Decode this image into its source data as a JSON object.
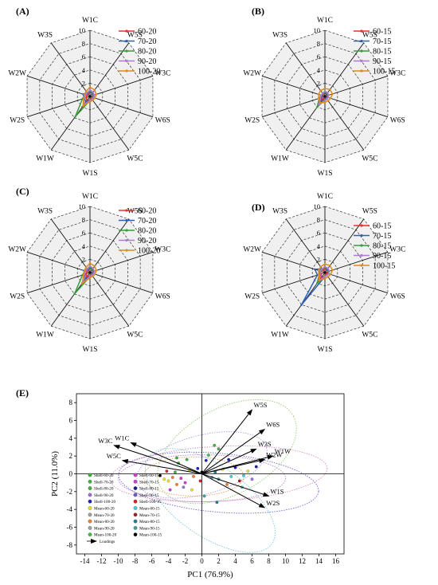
{
  "chart_data": [
    {
      "panel": "(A)",
      "type": "radar",
      "axes": [
        "W1C",
        "W5S",
        "W3C",
        "W6S",
        "W5C",
        "W1S",
        "W1W",
        "W2S",
        "W2W",
        "W3S"
      ],
      "rlim": [
        0,
        10
      ],
      "r_ticks": [
        "2",
        "4",
        "6",
        "8",
        "10"
      ],
      "legend_position": "top-right",
      "series": [
        {
          "name": "60-20",
          "color": "#e8312a",
          "values": [
            0.6,
            0.6,
            0.5,
            0.5,
            0.4,
            0.5,
            0.8,
            0.6,
            0.5,
            0.5
          ]
        },
        {
          "name": "70-20",
          "color": "#2d5fb5",
          "values": [
            0.7,
            0.6,
            0.6,
            0.5,
            0.5,
            0.6,
            1.0,
            0.9,
            1.1,
            0.6
          ]
        },
        {
          "name": "80-20",
          "color": "#3a9a3c",
          "values": [
            0.8,
            0.7,
            0.6,
            0.6,
            0.5,
            0.6,
            3.8,
            1.2,
            0.8,
            0.7
          ]
        },
        {
          "name": "90-20",
          "color": "#b07ad0",
          "values": [
            1.0,
            0.8,
            0.7,
            0.6,
            0.5,
            0.6,
            1.5,
            0.9,
            0.7,
            0.7
          ]
        },
        {
          "name": "100-20",
          "color": "#d98d15",
          "values": [
            1.4,
            1.2,
            1.0,
            0.8,
            0.7,
            0.8,
            1.8,
            1.0,
            0.9,
            1.0
          ]
        }
      ]
    },
    {
      "panel": "(B)",
      "type": "radar",
      "axes": [
        "W1C",
        "W5S",
        "W3C",
        "W6S",
        "W5C",
        "W1S",
        "W1W",
        "W2S",
        "W2W",
        "W3S"
      ],
      "rlim": [
        0,
        10
      ],
      "r_ticks": [
        "2",
        "4",
        "6",
        "8",
        "10"
      ],
      "legend_position": "top-right",
      "series": [
        {
          "name": "60-15",
          "color": "#e8312a",
          "values": [
            0.5,
            0.5,
            0.4,
            0.4,
            0.4,
            0.4,
            0.6,
            0.5,
            0.4,
            0.4
          ]
        },
        {
          "name": "70-15",
          "color": "#2d5fb5",
          "values": [
            0.6,
            0.5,
            0.5,
            0.4,
            0.4,
            0.5,
            0.9,
            0.6,
            0.5,
            0.5
          ]
        },
        {
          "name": "80-15",
          "color": "#3a9a3c",
          "values": [
            0.7,
            0.6,
            0.5,
            0.5,
            0.5,
            0.5,
            2.0,
            0.9,
            0.6,
            0.5
          ]
        },
        {
          "name": "90-15",
          "color": "#b07ad0",
          "values": [
            0.8,
            0.7,
            0.6,
            0.5,
            0.5,
            0.6,
            1.5,
            0.7,
            0.6,
            0.6
          ]
        },
        {
          "name": "100-15",
          "color": "#d98d15",
          "values": [
            1.2,
            1.3,
            1.2,
            0.9,
            0.8,
            0.9,
            1.2,
            1.0,
            1.0,
            1.1
          ]
        }
      ]
    },
    {
      "panel": "(C)",
      "type": "radar",
      "axes": [
        "W1C",
        "W5S",
        "W3C",
        "W6S",
        "W5C",
        "W1S",
        "W1W",
        "W2S",
        "W2W",
        "W3S"
      ],
      "rlim": [
        0,
        10
      ],
      "r_ticks": [
        "2",
        "4",
        "6",
        "8",
        "10"
      ],
      "legend_position": "top-right",
      "series": [
        {
          "name": "60-20",
          "color": "#e8312a",
          "values": [
            0.6,
            0.6,
            0.5,
            0.5,
            0.4,
            0.5,
            0.8,
            0.6,
            0.5,
            0.5
          ]
        },
        {
          "name": "70-20",
          "color": "#2d5fb5",
          "values": [
            0.7,
            0.6,
            0.6,
            0.5,
            0.5,
            0.6,
            1.2,
            0.8,
            1.0,
            0.6
          ]
        },
        {
          "name": "80-20",
          "color": "#3a9a3c",
          "values": [
            0.8,
            0.7,
            0.6,
            0.6,
            0.5,
            0.6,
            4.0,
            1.2,
            0.8,
            0.7
          ]
        },
        {
          "name": "90-20",
          "color": "#b07ad0",
          "values": [
            1.0,
            0.8,
            0.7,
            0.6,
            0.5,
            0.6,
            1.8,
            0.9,
            0.7,
            0.7
          ]
        },
        {
          "name": "100-20",
          "color": "#d98d15",
          "values": [
            1.4,
            1.2,
            1.0,
            0.8,
            0.7,
            0.8,
            2.0,
            1.0,
            0.9,
            1.0
          ]
        }
      ]
    },
    {
      "panel": "(D)",
      "type": "radar",
      "axes": [
        "W1C",
        "W5S",
        "W3C",
        "W6S",
        "W5C",
        "W1S",
        "W1W",
        "W2S",
        "W2W",
        "W3S"
      ],
      "rlim": [
        0,
        10
      ],
      "r_ticks": [
        "2",
        "4",
        "6",
        "8",
        "10"
      ],
      "legend_position": "top-right",
      "series": [
        {
          "name": "60-15",
          "color": "#e8312a",
          "values": [
            0.6,
            0.5,
            0.5,
            0.4,
            0.4,
            0.5,
            1.0,
            0.6,
            0.7,
            0.5
          ]
        },
        {
          "name": "70-15",
          "color": "#2d5fb5",
          "values": [
            0.8,
            0.6,
            0.6,
            0.5,
            0.5,
            0.6,
            6.1,
            1.2,
            1.6,
            0.7
          ]
        },
        {
          "name": "80-15",
          "color": "#3a9a3c",
          "values": [
            0.8,
            0.7,
            0.6,
            0.6,
            0.5,
            0.6,
            2.0,
            0.9,
            0.8,
            0.7
          ]
        },
        {
          "name": "90-15",
          "color": "#b07ad0",
          "values": [
            0.9,
            0.8,
            0.7,
            0.6,
            0.5,
            0.6,
            1.4,
            0.8,
            0.7,
            0.7
          ]
        },
        {
          "name": "100-15",
          "color": "#d98d15",
          "values": [
            1.3,
            1.3,
            1.2,
            0.9,
            0.8,
            0.9,
            1.5,
            1.0,
            1.0,
            1.1
          ]
        }
      ]
    },
    {
      "panel": "(E)",
      "type": "scatter",
      "xlabel": "PC1 (76.9%)",
      "ylabel": "PC2 (11.0%)",
      "xlim": [
        -15,
        17
      ],
      "ylim": [
        -9,
        9
      ],
      "xticks": [
        -14,
        -12,
        -10,
        -8,
        -6,
        -4,
        -2,
        0,
        2,
        4,
        6,
        8,
        10,
        12,
        14,
        16
      ],
      "yticks": [
        -8,
        -6,
        -4,
        -2,
        0,
        2,
        4,
        6,
        8
      ],
      "loadings": [
        {
          "name": "W5S",
          "x": 6.0,
          "y": 7.2
        },
        {
          "name": "W6S",
          "x": 7.5,
          "y": 5.0
        },
        {
          "name": "W3S",
          "x": 6.5,
          "y": 2.8
        },
        {
          "name": "W1W",
          "x": 8.5,
          "y": 2.0
        },
        {
          "name": "W2W",
          "x": 7.5,
          "y": 1.6
        },
        {
          "name": "W1S",
          "x": 8.0,
          "y": -2.5
        },
        {
          "name": "W2S",
          "x": 7.5,
          "y": -3.8
        },
        {
          "name": "W1C",
          "x": -8.5,
          "y": 3.5
        },
        {
          "name": "W3C",
          "x": -10.5,
          "y": 3.2
        },
        {
          "name": "W5C",
          "x": -9.5,
          "y": 1.5
        }
      ],
      "legend": [
        {
          "name": "Shell-60-20",
          "color": "#44b044"
        },
        {
          "name": "Shell-70-20",
          "color": "#44b044"
        },
        {
          "name": "Shell-80-20",
          "color": "#44b044"
        },
        {
          "name": "Shell-90-20",
          "color": "#a070d0"
        },
        {
          "name": "Shell-100-20",
          "color": "#2020c0"
        },
        {
          "name": "Mean-60-20",
          "color": "#e8e030"
        },
        {
          "name": "Mean-70-20",
          "color": "#a0a0a0"
        },
        {
          "name": "Mean-80-20",
          "color": "#f08030"
        },
        {
          "name": "Mean-90-20",
          "color": "#a0a0a0"
        },
        {
          "name": "Mean-100-20",
          "color": "#44c044"
        },
        {
          "name": "Shell-60-15",
          "color": "#d040d0"
        },
        {
          "name": "Shell-70-15",
          "color": "#d040d0"
        },
        {
          "name": "Shell-80-15",
          "color": "#202080"
        },
        {
          "name": "Shell-90-15",
          "color": "#6060c0"
        },
        {
          "name": "Shell-100-15",
          "color": "#e02020"
        },
        {
          "name": "Mean-60-15",
          "color": "#40d0e0"
        },
        {
          "name": "Mean-70-15",
          "color": "#a02020"
        },
        {
          "name": "Mean-80-15",
          "color": "#208090"
        },
        {
          "name": "Mean-90-15",
          "color": "#40a0a0"
        },
        {
          "name": "Mean-100-15",
          "color": "#000000"
        }
      ],
      "legend_loadings_label": "Loadings",
      "points": [
        {
          "x": -4.5,
          "y": -0.6,
          "color": "#e8e030"
        },
        {
          "x": -4.0,
          "y": -0.8,
          "color": "#e8e030"
        },
        {
          "x": -3.5,
          "y": -0.4,
          "color": "#f08030"
        },
        {
          "x": -3.0,
          "y": -1.2,
          "color": "#f08030"
        },
        {
          "x": -2.5,
          "y": -0.5,
          "color": "#d040d0"
        },
        {
          "x": -2.0,
          "y": -1.0,
          "color": "#d040d0"
        },
        {
          "x": -5.0,
          "y": -0.2,
          "color": "#000000"
        },
        {
          "x": -4.2,
          "y": 0.3,
          "color": "#e02020"
        },
        {
          "x": -3.2,
          "y": 0.2,
          "color": "#44b044"
        },
        {
          "x": -2.8,
          "y": 1.2,
          "color": "#44b044"
        },
        {
          "x": -1.8,
          "y": 1.6,
          "color": "#44b044"
        },
        {
          "x": -2.2,
          "y": -1.5,
          "color": "#a070d0"
        },
        {
          "x": -1.5,
          "y": 0.4,
          "color": "#e8e030"
        },
        {
          "x": -1.0,
          "y": -0.3,
          "color": "#f08030"
        },
        {
          "x": -0.5,
          "y": 0.6,
          "color": "#2020c0"
        },
        {
          "x": 0.5,
          "y": 1.5,
          "color": "#2020c0"
        },
        {
          "x": 0.8,
          "y": 2.1,
          "color": "#44c044"
        },
        {
          "x": 1.2,
          "y": -0.4,
          "color": "#40d0e0"
        },
        {
          "x": 1.6,
          "y": 0.2,
          "color": "#208090"
        },
        {
          "x": 2.0,
          "y": -0.6,
          "color": "#40a0a0"
        },
        {
          "x": 2.5,
          "y": 0.5,
          "color": "#e8e030"
        },
        {
          "x": 3.0,
          "y": -1.2,
          "color": "#f08030"
        },
        {
          "x": 3.5,
          "y": -0.3,
          "color": "#40d0e0"
        },
        {
          "x": 4.0,
          "y": 0.7,
          "color": "#2020c0"
        },
        {
          "x": 4.5,
          "y": -0.8,
          "color": "#a02020"
        },
        {
          "x": 5.0,
          "y": -0.2,
          "color": "#40d0e0"
        },
        {
          "x": 5.5,
          "y": 0.3,
          "color": "#e8e030"
        },
        {
          "x": 6.0,
          "y": -0.6,
          "color": "#a070d0"
        },
        {
          "x": 6.5,
          "y": 0.8,
          "color": "#202080"
        },
        {
          "x": 1.5,
          "y": 3.2,
          "color": "#44b044"
        },
        {
          "x": 2.0,
          "y": 2.8,
          "color": "#44b044"
        },
        {
          "x": 0.3,
          "y": -2.5,
          "color": "#40a0a0"
        },
        {
          "x": 1.8,
          "y": -3.2,
          "color": "#208090"
        },
        {
          "x": -0.2,
          "y": -0.8,
          "color": "#e02020"
        },
        {
          "x": 0.0,
          "y": 0.2,
          "color": "#000000"
        },
        {
          "x": -3.8,
          "y": -1.8,
          "color": "#d040d0"
        },
        {
          "x": -3.0,
          "y": 1.8,
          "color": "#44b044"
        },
        {
          "x": 3.2,
          "y": 1.6,
          "color": "#2020c0"
        },
        {
          "x": -1.2,
          "y": -1.8,
          "color": "#e8e030"
        },
        {
          "x": 4.8,
          "y": -1.5,
          "color": "#40d0e0"
        }
      ],
      "ellipses": [
        {
          "cx": 3,
          "cy": 2.5,
          "rx": 9,
          "ry": 2.2,
          "angle": 28,
          "color": "#9ad070"
        },
        {
          "cx": 2,
          "cy": -1,
          "rx": 12,
          "ry": 1.5,
          "angle": -5,
          "color": "#6a6ad0"
        },
        {
          "cx": 0,
          "cy": -0.5,
          "rx": 10,
          "ry": 1.2,
          "angle": 0,
          "color": "#c080d0"
        },
        {
          "cx": 2,
          "cy": 0,
          "rx": 13,
          "ry": 1.4,
          "angle": 3,
          "color": "#d890c0"
        },
        {
          "cx": 1,
          "cy": -3,
          "rx": 9,
          "ry": 1.8,
          "angle": -35,
          "color": "#80c8e0"
        },
        {
          "cx": 0,
          "cy": 1,
          "rx": 8,
          "ry": 1.5,
          "angle": 15,
          "color": "#b0a0e0"
        },
        {
          "cx": -1,
          "cy": -0.3,
          "rx": 6,
          "ry": 1,
          "angle": 0,
          "color": "#e0a060"
        }
      ]
    }
  ]
}
